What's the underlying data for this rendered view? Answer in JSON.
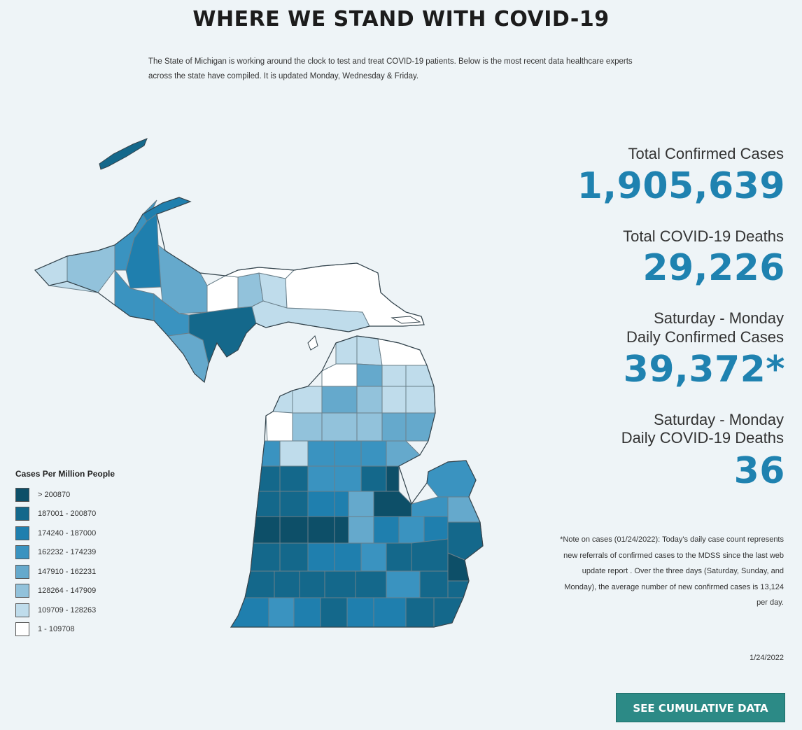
{
  "page": {
    "title": "WHERE WE STAND WITH COVID-19",
    "intro": "The State of Michigan is working around the clock to test and treat COVID-19 patients. Below is the most recent data healthcare experts across the state have compiled. It is updated Monday, Wednesday & Friday."
  },
  "stats": {
    "total_cases_label": "Total Confirmed Cases",
    "total_cases_value": "1,905,639",
    "total_deaths_label": "Total COVID-19 Deaths",
    "total_deaths_value": "29,226",
    "daily_cases_label_1": "Saturday - Monday",
    "daily_cases_label_2": "Daily Confirmed Cases",
    "daily_cases_value": "39,372*",
    "daily_deaths_label_1": "Saturday - Monday",
    "daily_deaths_label_2": "Daily COVID-19 Deaths",
    "daily_deaths_value": "36"
  },
  "note": "*Note on cases (01/24/2022): Today's daily case count represents new referrals of confirmed cases to the MDSS since the last web update report . Over the three days (Saturday, Sunday, and Monday), the average number of new confirmed cases is 13,124 per day.",
  "date": "1/24/2022",
  "button": {
    "label": "SEE CUMULATIVE DATA"
  },
  "legend": {
    "title": "Cases Per Million People",
    "items": [
      {
        "label": "> 200870",
        "color": "#0d4f68"
      },
      {
        "label": "187001 - 200870",
        "color": "#14688b"
      },
      {
        "label": "174240 - 187000",
        "color": "#1f7fae"
      },
      {
        "label": "162232 - 174239",
        "color": "#3a93c0"
      },
      {
        "label": "147910 - 162231",
        "color": "#65a9cc"
      },
      {
        "label": "128264 - 147909",
        "color": "#92c2db"
      },
      {
        "label": "109709 - 128263",
        "color": "#bfdceb"
      },
      {
        "label": "1 - 109708",
        "color": "#ffffff"
      }
    ]
  },
  "map": {
    "region": "Michigan",
    "colors": {
      "border": "#6a7f8a",
      "outline": "#33434c"
    }
  }
}
